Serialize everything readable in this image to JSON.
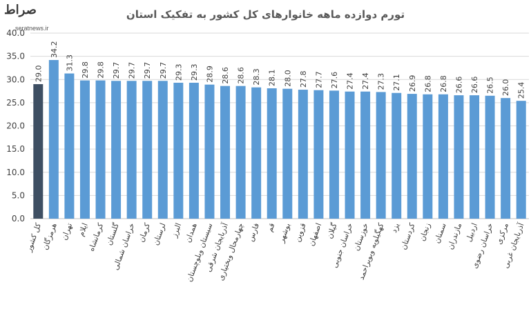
{
  "watermark": {
    "logo": "صراط",
    "site": "seratnews.ir"
  },
  "chart_data": {
    "type": "bar",
    "title": "تورم دوازده ماهه خانوارهای کل کشور به تفکیک استان",
    "xlabel": "",
    "ylabel": "",
    "ylim": [
      0,
      40
    ],
    "yticks": [
      "0.0",
      "5.0",
      "10.0",
      "15.0",
      "20.0",
      "25.0",
      "30.0",
      "35.0",
      "40.0"
    ],
    "grid": true,
    "colors": {
      "highlight": "#3e4f63",
      "bar": "#5b9bd5",
      "grid": "#d9d9d9",
      "text": "#404040"
    },
    "categories": [
      "کل کشور",
      "هرمزگان",
      "تهران",
      "ایلام",
      "کرمانشاه",
      "گلستان",
      "خراسان شمالی",
      "کرمان",
      "لرستان",
      "البرز",
      "همدان",
      "سیستان وبلوچستان",
      "آذربایجان شرقی",
      "چهارمحال وبختیاری",
      "فارس",
      "قم",
      "بوشهر",
      "قزوین",
      "اصفهان",
      "گیلان",
      "خراسان جنوبی",
      "خوزستان",
      "کهگیلویه وبویراحمد",
      "یزد",
      "کردستان",
      "زنجان",
      "سمنان",
      "مازندران",
      "اردبیل",
      "خراسان رضوی",
      "مرکزی",
      "آذربایجان غربی"
    ],
    "values": [
      29.0,
      34.2,
      31.3,
      29.8,
      29.8,
      29.7,
      29.7,
      29.7,
      29.7,
      29.3,
      29.3,
      28.9,
      28.6,
      28.6,
      28.3,
      28.1,
      28.0,
      27.8,
      27.7,
      27.6,
      27.4,
      27.4,
      27.3,
      27.1,
      26.9,
      26.8,
      26.8,
      26.6,
      26.6,
      26.5,
      26.0,
      25.4
    ],
    "value_labels": [
      "29.0",
      "34.2",
      "31.3",
      "29.8",
      "29.8",
      "29.7",
      "29.7",
      "29.7",
      "29.7",
      "29.3",
      "29.3",
      "28.9",
      "28.6",
      "28.6",
      "28.3",
      "28.1",
      "28.0",
      "27.8",
      "27.7",
      "27.6",
      "27.4",
      "27.4",
      "27.3",
      "27.1",
      "26.9",
      "26.8",
      "26.8",
      "26.6",
      "26.6",
      "26.5",
      "26.0",
      "25.4"
    ],
    "highlight_index": 0
  }
}
